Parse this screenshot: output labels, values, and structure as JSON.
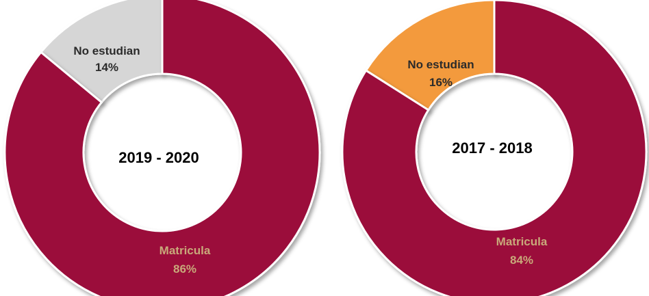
{
  "chart_data": [
    {
      "type": "pie",
      "center_label": "2019 - 2020",
      "slices": [
        {
          "label": "No estudian",
          "value_label": "14%",
          "value": 14,
          "color": "#d6d6d6",
          "label_color": "#2b2b2b"
        },
        {
          "label": "Matricula",
          "value_label": "86%",
          "value": 86,
          "color": "#9b0a3a",
          "label_color": "#c9a97a"
        }
      ]
    },
    {
      "type": "pie",
      "center_label": "2017 - 2018",
      "slices": [
        {
          "label": "No estudian",
          "value_label": "16%",
          "value": 16,
          "color": "#f39a3c",
          "label_color": "#2b2b2b"
        },
        {
          "label": "Matricula",
          "value_label": "84%",
          "value": 84,
          "color": "#9b0a3a",
          "label_color": "#c9a97a"
        }
      ]
    }
  ]
}
